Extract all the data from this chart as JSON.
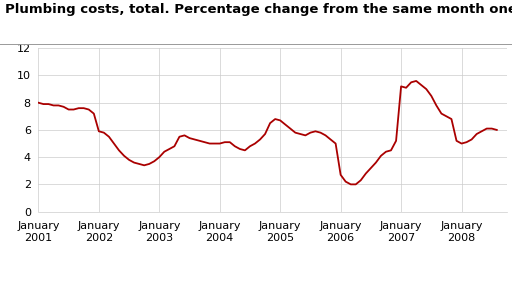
{
  "title": "Plumbing costs, total. Percentage change from the same month one year before",
  "title_fontsize": 9.5,
  "line_color": "#aa0000",
  "background_color": "#ffffff",
  "grid_color": "#cccccc",
  "ylim": [
    0,
    12
  ],
  "yticks": [
    0,
    2,
    4,
    6,
    8,
    10,
    12
  ],
  "xtick_positions": [
    2001,
    2002,
    2003,
    2004,
    2005,
    2006,
    2007,
    2008
  ],
  "xtick_labels": [
    "January\n2001",
    "January\n2002",
    "January\n2003",
    "January\n2004",
    "January\n2005",
    "January\n2006",
    "January\n2007",
    "January\n2008"
  ],
  "months": [
    2001.0,
    2001.083,
    2001.167,
    2001.25,
    2001.333,
    2001.417,
    2001.5,
    2001.583,
    2001.667,
    2001.75,
    2001.833,
    2001.917,
    2002.0,
    2002.083,
    2002.167,
    2002.25,
    2002.333,
    2002.417,
    2002.5,
    2002.583,
    2002.667,
    2002.75,
    2002.833,
    2002.917,
    2003.0,
    2003.083,
    2003.167,
    2003.25,
    2003.333,
    2003.417,
    2003.5,
    2003.583,
    2003.667,
    2003.75,
    2003.833,
    2003.917,
    2004.0,
    2004.083,
    2004.167,
    2004.25,
    2004.333,
    2004.417,
    2004.5,
    2004.583,
    2004.667,
    2004.75,
    2004.833,
    2004.917,
    2005.0,
    2005.083,
    2005.167,
    2005.25,
    2005.333,
    2005.417,
    2005.5,
    2005.583,
    2005.667,
    2005.75,
    2005.833,
    2005.917,
    2006.0,
    2006.083,
    2006.167,
    2006.25,
    2006.333,
    2006.417,
    2006.5,
    2006.583,
    2006.667,
    2006.75,
    2006.833,
    2006.917,
    2007.0,
    2007.083,
    2007.167,
    2007.25,
    2007.333,
    2007.417,
    2007.5,
    2007.583,
    2007.667,
    2007.75,
    2007.833,
    2007.917,
    2008.0,
    2008.083,
    2008.167,
    2008.25,
    2008.333,
    2008.417,
    2008.5,
    2008.583
  ],
  "values": [
    8.0,
    7.9,
    7.9,
    7.8,
    7.8,
    7.7,
    7.5,
    7.5,
    7.6,
    7.6,
    7.5,
    7.2,
    5.9,
    5.8,
    5.5,
    5.0,
    4.5,
    4.1,
    3.8,
    3.6,
    3.5,
    3.4,
    3.5,
    3.7,
    4.0,
    4.4,
    4.6,
    4.8,
    5.5,
    5.6,
    5.4,
    5.3,
    5.2,
    5.1,
    5.0,
    5.0,
    5.0,
    5.1,
    5.1,
    4.8,
    4.6,
    4.5,
    4.8,
    5.0,
    5.3,
    5.7,
    6.5,
    6.8,
    6.7,
    6.4,
    6.1,
    5.8,
    5.7,
    5.6,
    5.8,
    5.9,
    5.8,
    5.6,
    5.3,
    5.0,
    2.7,
    2.2,
    2.0,
    2.0,
    2.3,
    2.8,
    3.2,
    3.6,
    4.1,
    4.4,
    4.5,
    5.2,
    9.2,
    9.1,
    9.5,
    9.6,
    9.3,
    9.0,
    8.5,
    7.8,
    7.2,
    7.0,
    6.8,
    5.2,
    5.0,
    5.1,
    5.3,
    5.7,
    5.9,
    6.1,
    6.1,
    6.0
  ],
  "xlim": [
    2001.0,
    2008.75
  ]
}
